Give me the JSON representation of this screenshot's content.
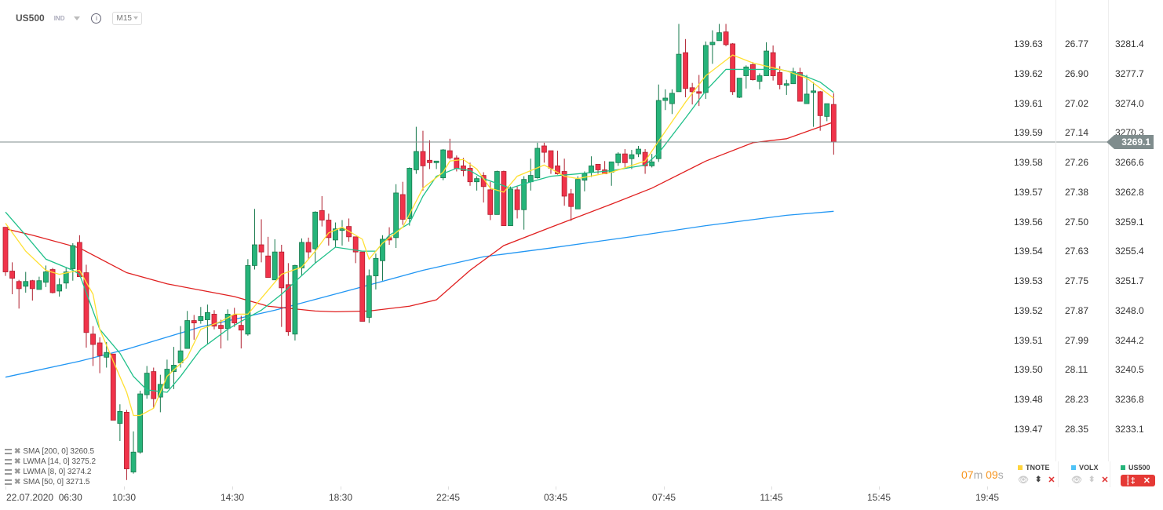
{
  "header": {
    "symbol": "US500",
    "type": "IND",
    "info_icon": "i",
    "timeframe": "M15"
  },
  "colors": {
    "up": "#26b47a",
    "up_border": "#17784c",
    "down": "#f0334a",
    "down_border": "#b0202f",
    "sma200": "#2196f3",
    "sma50": "#e02020",
    "lwma14": "#20c08a",
    "lwma8": "#ffe033",
    "price_line": "#7f8c8d",
    "timer": "#f7941d"
  },
  "current_price": "3269.1",
  "current_price_value": 3269.1,
  "axes": {
    "tnote": [
      "139.63",
      "139.62",
      "139.61",
      "139.59",
      "139.58",
      "139.57",
      "139.56",
      "139.54",
      "139.53",
      "139.52",
      "139.51",
      "139.50",
      "139.48",
      "139.47"
    ],
    "volx": [
      "26.77",
      "26.90",
      "27.02",
      "27.14",
      "27.26",
      "27.38",
      "27.50",
      "27.63",
      "27.75",
      "27.87",
      "27.99",
      "28.11",
      "28.23",
      "28.35"
    ],
    "us500": [
      "3281.4",
      "3277.7",
      "3274.0",
      "3270.3",
      "3266.6",
      "3262.8",
      "3259.1",
      "3255.4",
      "3251.7",
      "3248.0",
      "3244.2",
      "3240.5",
      "3236.8",
      "3233.1"
    ]
  },
  "time_labels": [
    "22.07.2020  06:30",
    "10:30",
    "14:30",
    "18:30",
    "22:45",
    "03:45",
    "07:45",
    "11:45",
    "15:45",
    "19:45"
  ],
  "indicators": [
    {
      "label": "SMA [200,  0] 3260.5"
    },
    {
      "label": "LWMA [14,  0] 3275.2"
    },
    {
      "label": "LWMA [8,  0] 3274.2"
    },
    {
      "label": "SMA [50,  0] 3271.5"
    }
  ],
  "timer": {
    "min": "07",
    "min_unit": "m",
    "sec": "09",
    "sec_unit": "s"
  },
  "legend": [
    {
      "name": "TNOTE",
      "color": "#ffd43b"
    },
    {
      "name": "VOLX",
      "color": "#4fc3f7"
    },
    {
      "name": "US500",
      "color": "#26b47a"
    }
  ],
  "chart_data": {
    "type": "candlestick",
    "candle_fields": [
      "open",
      "close",
      "high",
      "low"
    ],
    "candles": [
      [
        3258.4,
        3252.8,
        3258.4,
        3252.3
      ],
      [
        3252.9,
        3252.0,
        3254.0,
        3250.0
      ],
      [
        3251.6,
        3250.7,
        3251.8,
        3248.2
      ],
      [
        3251.0,
        3251.6,
        3252.8,
        3250.2
      ],
      [
        3251.7,
        3250.7,
        3251.8,
        3249.2
      ],
      [
        3250.6,
        3251.7,
        3252.2,
        3250.6
      ],
      [
        3251.5,
        3252.8,
        3253.6,
        3250.9
      ],
      [
        3253.1,
        3250.2,
        3253.3,
        3250.1
      ],
      [
        3250.4,
        3251.2,
        3252.0,
        3249.7
      ],
      [
        3251.4,
        3252.8,
        3253.4,
        3250.7
      ],
      [
        3253.2,
        3256.1,
        3256.4,
        3251.7
      ],
      [
        3256.5,
        3252.2,
        3257.4,
        3252.2
      ],
      [
        3252.7,
        3245.2,
        3253.7,
        3243.3
      ],
      [
        3245.0,
        3243.7,
        3246.0,
        3241.0
      ],
      [
        3243.9,
        3242.3,
        3244.6,
        3240.1
      ],
      [
        3242.1,
        3242.7,
        3244.0,
        3240.8
      ],
      [
        3242.5,
        3234.2,
        3242.5,
        3234.2
      ],
      [
        3233.8,
        3235.3,
        3236.2,
        3231.6
      ],
      [
        3235.2,
        3228.1,
        3235.5,
        3226.7
      ],
      [
        3227.7,
        3230.2,
        3232.8,
        3227.5
      ],
      [
        3230.2,
        3237.5,
        3237.9,
        3230.0
      ],
      [
        3237.4,
        3240.1,
        3241.0,
        3236.9
      ],
      [
        3240.3,
        3236.9,
        3240.8,
        3235.7
      ],
      [
        3237.1,
        3238.7,
        3239.9,
        3235.2
      ],
      [
        3238.2,
        3240.6,
        3241.8,
        3238.1
      ],
      [
        3240.3,
        3241.1,
        3243.4,
        3238.1
      ],
      [
        3241.4,
        3242.9,
        3246.0,
        3240.8
      ],
      [
        3243.2,
        3246.7,
        3247.9,
        3243.2
      ],
      [
        3246.7,
        3246.4,
        3247.4,
        3244.3
      ],
      [
        3246.7,
        3247.2,
        3248.4,
        3246.3
      ],
      [
        3246.8,
        3247.7,
        3248.7,
        3243.8
      ],
      [
        3247.5,
        3246.0,
        3248.0,
        3245.6
      ],
      [
        3246.1,
        3245.7,
        3246.8,
        3243.2
      ],
      [
        3245.7,
        3247.5,
        3248.1,
        3244.2
      ],
      [
        3247.4,
        3246.4,
        3248.3,
        3245.9
      ],
      [
        3246.1,
        3245.5,
        3247.3,
        3243.2
      ],
      [
        3245.0,
        3253.6,
        3254.4,
        3244.8
      ],
      [
        3253.6,
        3256.2,
        3260.7,
        3253.1
      ],
      [
        3256.2,
        3255.3,
        3259.4,
        3254.0
      ],
      [
        3254.8,
        3252.1,
        3257.2,
        3252.1
      ],
      [
        3251.8,
        3255.3,
        3256.9,
        3251.8
      ],
      [
        3255.3,
        3250.8,
        3256.2,
        3245.9
      ],
      [
        3251.2,
        3245.3,
        3253.9,
        3244.8
      ],
      [
        3245.0,
        3253.6,
        3253.7,
        3244.2
      ],
      [
        3253.3,
        3256.5,
        3257.0,
        3252.3
      ],
      [
        3256.5,
        3255.3,
        3257.1,
        3254.4
      ],
      [
        3255.7,
        3260.3,
        3260.4,
        3253.9
      ],
      [
        3260.5,
        3259.3,
        3262.3,
        3258.5
      ],
      [
        3259.3,
        3257.1,
        3260.1,
        3256.1
      ],
      [
        3256.8,
        3258.2,
        3259.0,
        3255.9
      ],
      [
        3258.0,
        3258.2,
        3259.3,
        3256.1
      ],
      [
        3258.5,
        3257.2,
        3259.5,
        3256.6
      ],
      [
        3257.2,
        3255.3,
        3257.2,
        3253.9
      ],
      [
        3255.3,
        3246.6,
        3255.3,
        3246.6
      ],
      [
        3247.1,
        3252.3,
        3253.1,
        3246.4
      ],
      [
        3252.3,
        3254.5,
        3255.1,
        3250.6
      ],
      [
        3254.2,
        3256.9,
        3257.4,
        3251.7
      ],
      [
        3257.1,
        3256.8,
        3258.4,
        3256.2
      ],
      [
        3257.1,
        3262.7,
        3263.8,
        3255.8
      ],
      [
        3262.5,
        3259.4,
        3264.1,
        3258.7
      ],
      [
        3259.5,
        3265.8,
        3265.9,
        3258.6
      ],
      [
        3265.6,
        3267.9,
        3271.0,
        3265.1
      ],
      [
        3267.9,
        3266.1,
        3270.5,
        3263.0
      ],
      [
        3266.8,
        3266.5,
        3269.3,
        3265.7
      ],
      [
        3266.5,
        3266.7,
        3266.7,
        3265.7
      ],
      [
        3264.6,
        3268.1,
        3268.2,
        3264.3
      ],
      [
        3268.0,
        3267.1,
        3269.5,
        3266.9
      ],
      [
        3267.1,
        3265.8,
        3267.4,
        3265.4
      ],
      [
        3266.1,
        3265.5,
        3267.1,
        3264.8
      ],
      [
        3265.8,
        3264.1,
        3266.5,
        3263.6
      ],
      [
        3264.1,
        3264.5,
        3264.8,
        3263.0
      ],
      [
        3264.9,
        3263.5,
        3265.3,
        3261.5
      ],
      [
        3263.1,
        3260.0,
        3264.1,
        3259.3
      ],
      [
        3260.0,
        3265.4,
        3265.5,
        3260.0
      ],
      [
        3265.4,
        3258.6,
        3265.5,
        3258.6
      ],
      [
        3258.6,
        3263.2,
        3263.5,
        3258.6
      ],
      [
        3263.1,
        3260.6,
        3263.5,
        3259.5
      ],
      [
        3260.6,
        3264.4,
        3264.8,
        3258.1
      ],
      [
        3264.1,
        3264.9,
        3267.0,
        3263.0
      ],
      [
        3264.6,
        3268.3,
        3269.0,
        3264.5
      ],
      [
        3268.6,
        3267.8,
        3269.0,
        3266.5
      ],
      [
        3268.0,
        3265.8,
        3268.0,
        3265.1
      ],
      [
        3266.1,
        3265.1,
        3268.0,
        3265.0
      ],
      [
        3265.4,
        3262.3,
        3267.0,
        3261.1
      ],
      [
        3262.6,
        3261.0,
        3263.2,
        3259.2
      ],
      [
        3260.7,
        3264.4,
        3264.8,
        3260.7
      ],
      [
        3264.3,
        3265.1,
        3265.4,
        3262.9
      ],
      [
        3265.3,
        3266.1,
        3267.3,
        3264.7
      ],
      [
        3266.3,
        3265.6,
        3266.3,
        3265.1
      ],
      [
        3265.6,
        3265.1,
        3266.7,
        3265.1
      ],
      [
        3265.3,
        3266.6,
        3266.6,
        3263.6
      ],
      [
        3266.5,
        3267.6,
        3267.8,
        3266.1
      ],
      [
        3267.6,
        3266.5,
        3268.2,
        3265.9
      ],
      [
        3267.0,
        3267.5,
        3268.1,
        3265.7
      ],
      [
        3267.6,
        3268.2,
        3268.6,
        3267.2
      ],
      [
        3267.8,
        3266.1,
        3268.2,
        3265.1
      ],
      [
        3266.1,
        3266.6,
        3267.6,
        3265.9
      ],
      [
        3267.0,
        3274.3,
        3276.3,
        3266.6
      ],
      [
        3274.3,
        3274.6,
        3275.7,
        3273.1
      ],
      [
        3273.9,
        3275.2,
        3275.7,
        3272.6
      ],
      [
        3275.4,
        3280.1,
        3283.9,
        3275.4
      ],
      [
        3280.3,
        3275.8,
        3282.0,
        3274.7
      ],
      [
        3275.9,
        3275.4,
        3276.5,
        3273.8
      ],
      [
        3275.4,
        3275.2,
        3277.5,
        3273.6
      ],
      [
        3275.3,
        3281.2,
        3281.7,
        3274.5
      ],
      [
        3281.3,
        3281.6,
        3283.1,
        3278.9
      ],
      [
        3281.8,
        3282.8,
        3283.9,
        3281.8
      ],
      [
        3282.9,
        3281.3,
        3283.9,
        3281.1
      ],
      [
        3281.4,
        3275.4,
        3281.5,
        3275.0
      ],
      [
        3274.7,
        3277.1,
        3277.1,
        3274.6
      ],
      [
        3277.4,
        3278.5,
        3278.7,
        3275.8
      ],
      [
        3278.8,
        3276.9,
        3279.1,
        3276.8
      ],
      [
        3276.7,
        3277.4,
        3277.7,
        3275.7
      ],
      [
        3277.4,
        3280.5,
        3281.6,
        3277.4
      ],
      [
        3280.3,
        3277.4,
        3281.2,
        3276.8
      ],
      [
        3277.8,
        3276.3,
        3278.6,
        3275.7
      ],
      [
        3276.2,
        3276.4,
        3276.9,
        3275.0
      ],
      [
        3276.4,
        3277.9,
        3278.4,
        3276.4
      ],
      [
        3277.8,
        3274.2,
        3278.4,
        3274.2
      ],
      [
        3273.9,
        3275.1,
        3277.5,
        3273.9
      ],
      [
        3275.3,
        3275.5,
        3276.6,
        3271.0
      ],
      [
        3275.4,
        3272.4,
        3275.5,
        3270.5
      ],
      [
        3272.3,
        3273.9,
        3273.9,
        3271.7
      ],
      [
        3273.8,
        3269.1,
        3275.2,
        3267.5
      ]
    ],
    "series": [
      {
        "name": "SMA 200",
        "points": [
          [
            0,
            3239.6
          ],
          [
            11,
            3241.6
          ],
          [
            18,
            3243.1
          ],
          [
            29,
            3245.9
          ],
          [
            40,
            3248.0
          ],
          [
            52,
            3250.7
          ],
          [
            62,
            3253.0
          ],
          [
            71,
            3254.7
          ],
          [
            81,
            3255.8
          ],
          [
            92,
            3257.1
          ],
          [
            104,
            3258.6
          ],
          [
            116,
            3259.9
          ],
          [
            123,
            3260.4
          ]
        ]
      },
      {
        "name": "SMA 50",
        "points": [
          [
            0,
            3258.2
          ],
          [
            4,
            3257.4
          ],
          [
            11,
            3255.8
          ],
          [
            18,
            3252.7
          ],
          [
            24,
            3251.3
          ],
          [
            29,
            3250.5
          ],
          [
            34,
            3249.7
          ],
          [
            39,
            3248.5
          ],
          [
            46,
            3247.9
          ],
          [
            49,
            3247.8
          ],
          [
            54,
            3247.9
          ],
          [
            60,
            3248.5
          ],
          [
            64,
            3249.3
          ],
          [
            69,
            3253.0
          ],
          [
            74,
            3256.1
          ],
          [
            81,
            3258.4
          ],
          [
            90,
            3261.3
          ],
          [
            96,
            3263.3
          ],
          [
            104,
            3266.7
          ],
          [
            111,
            3269.0
          ],
          [
            116,
            3269.5
          ],
          [
            123,
            3271.6
          ]
        ]
      },
      {
        "name": "LWMA 14",
        "points": [
          [
            0,
            3260.3
          ],
          [
            3,
            3257.4
          ],
          [
            6,
            3254.4
          ],
          [
            10,
            3253.0
          ],
          [
            11,
            3252.5
          ],
          [
            14,
            3245.6
          ],
          [
            17,
            3242.6
          ],
          [
            19,
            3239.7
          ],
          [
            21,
            3238.0
          ],
          [
            24,
            3237.7
          ],
          [
            26,
            3239.7
          ],
          [
            29,
            3243.1
          ],
          [
            33,
            3245.6
          ],
          [
            35,
            3246.6
          ],
          [
            38,
            3248.0
          ],
          [
            41,
            3250.0
          ],
          [
            46,
            3253.9
          ],
          [
            49,
            3255.9
          ],
          [
            53,
            3255.4
          ],
          [
            55,
            3255.4
          ],
          [
            57,
            3257.4
          ],
          [
            60,
            3258.9
          ],
          [
            62,
            3262.3
          ],
          [
            64,
            3264.8
          ],
          [
            67,
            3265.8
          ],
          [
            69,
            3265.5
          ],
          [
            71,
            3264.5
          ],
          [
            75,
            3263.3
          ],
          [
            78,
            3264.1
          ],
          [
            81,
            3264.8
          ],
          [
            85,
            3265.1
          ],
          [
            90,
            3265.5
          ],
          [
            95,
            3266.2
          ],
          [
            97,
            3267.7
          ],
          [
            101,
            3272.1
          ],
          [
            104,
            3275.5
          ],
          [
            107,
            3278.2
          ],
          [
            111,
            3278.2
          ],
          [
            115,
            3278.2
          ],
          [
            118,
            3277.6
          ],
          [
            121,
            3276.6
          ],
          [
            123,
            3275.3
          ]
        ]
      },
      {
        "name": "LWMA 8",
        "points": [
          [
            0,
            3258.9
          ],
          [
            3,
            3255.4
          ],
          [
            6,
            3253.0
          ],
          [
            8,
            3252.5
          ],
          [
            11,
            3253.0
          ],
          [
            13,
            3250.0
          ],
          [
            14,
            3245.6
          ],
          [
            16,
            3241.6
          ],
          [
            18,
            3237.7
          ],
          [
            19,
            3234.8
          ],
          [
            20,
            3234.8
          ],
          [
            22,
            3235.7
          ],
          [
            24,
            3239.7
          ],
          [
            27,
            3242.1
          ],
          [
            29,
            3245.6
          ],
          [
            32,
            3246.6
          ],
          [
            34,
            3247.5
          ],
          [
            36,
            3247.5
          ],
          [
            39,
            3250.5
          ],
          [
            41,
            3252.5
          ],
          [
            44,
            3253.4
          ],
          [
            46,
            3255.4
          ],
          [
            48,
            3257.7
          ],
          [
            50,
            3258.4
          ],
          [
            53,
            3256.9
          ],
          [
            54,
            3254.4
          ],
          [
            56,
            3256.4
          ],
          [
            59,
            3258.4
          ],
          [
            62,
            3263.3
          ],
          [
            65,
            3265.3
          ],
          [
            66,
            3266.7
          ],
          [
            68,
            3266.9
          ],
          [
            70,
            3265.7
          ],
          [
            72,
            3263.3
          ],
          [
            74,
            3262.8
          ],
          [
            76,
            3264.8
          ],
          [
            80,
            3266.2
          ],
          [
            83,
            3264.8
          ],
          [
            85,
            3264.5
          ],
          [
            90,
            3265.3
          ],
          [
            95,
            3266.7
          ],
          [
            97,
            3269.2
          ],
          [
            101,
            3274.1
          ],
          [
            104,
            3277.4
          ],
          [
            108,
            3280.0
          ],
          [
            111,
            3279.0
          ],
          [
            116,
            3278.0
          ],
          [
            119,
            3277.1
          ],
          [
            123,
            3274.6
          ]
        ]
      }
    ],
    "ylim": [
      3226.0,
      3285.0
    ]
  }
}
